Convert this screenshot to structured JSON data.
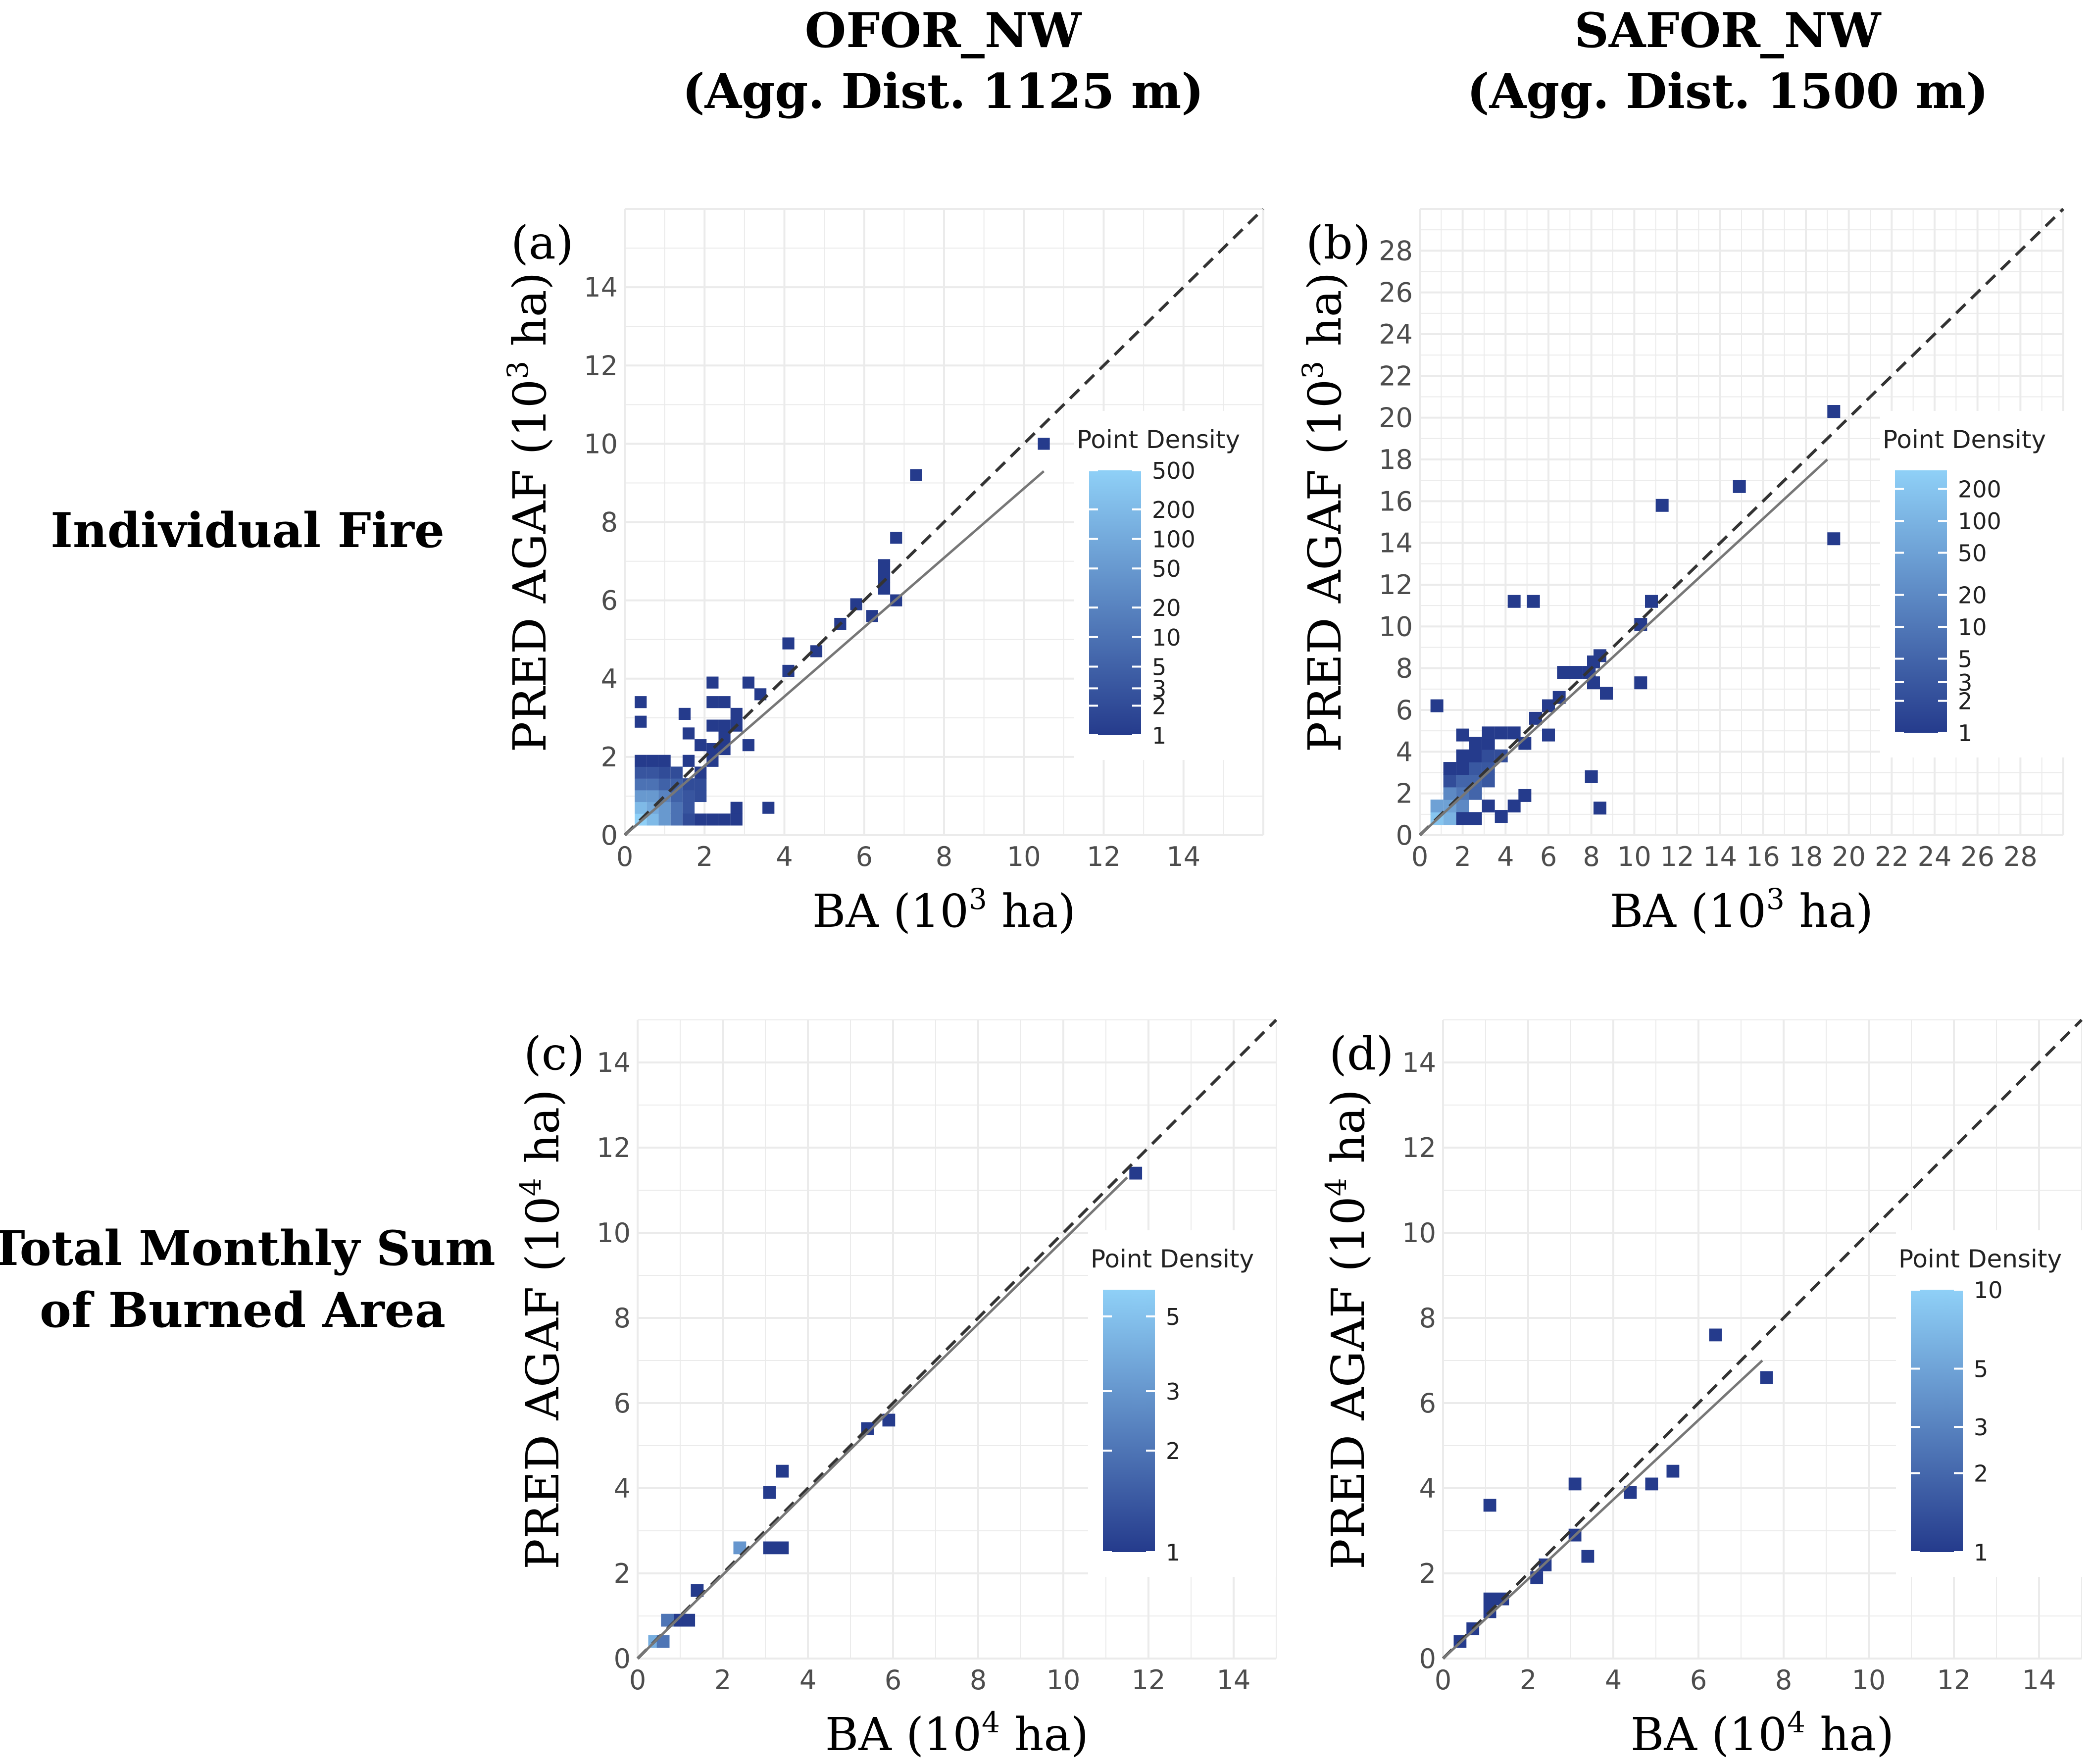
{
  "column_headers": [
    {
      "name": "OFOR_NW",
      "subtitle": "(Agg. Dist. 1125 m)"
    },
    {
      "name": "SAFOR_NW",
      "subtitle": "(Agg. Dist. 1500 m)"
    }
  ],
  "row_labels": [
    {
      "lines": [
        "Individual Fire"
      ]
    },
    {
      "lines": [
        "Total Monthly Sum",
        "of Burned Area"
      ]
    }
  ],
  "colors": {
    "low": "#253b8c",
    "high": "#8fd0f7",
    "grid": "#ebebeb",
    "axis_text": "#4d4d4d",
    "one_to_one": "#333333",
    "fit": "#777777"
  },
  "chart_data": [
    {
      "type": "heatmap",
      "panel_label": "(a)",
      "xlabel": {
        "pre": "BA (10",
        "sup": "3",
        "post": " ha)"
      },
      "ylabel": {
        "pre": "PRED AGAF (10",
        "sup": "3",
        "post": " ha)"
      },
      "xlim": [
        0,
        16
      ],
      "ylim": [
        0,
        16
      ],
      "xticks": [
        "0",
        "2",
        "4",
        "6",
        "8",
        "10",
        "12",
        "14"
      ],
      "yticks": [
        "0",
        "2",
        "4",
        "6",
        "8",
        "10",
        "12",
        "14"
      ],
      "fit_line": {
        "x0": 0,
        "y0": 0,
        "x1": 10.5,
        "y1": 9.3
      },
      "legend": {
        "title": "Point Density",
        "ticks": [
          "1",
          "2",
          "3",
          "5",
          "10",
          "20",
          "50",
          "100",
          "200",
          "500"
        ],
        "max": 500
      },
      "bin": 0.3,
      "points": [
        [
          0.4,
          0.4,
          500
        ],
        [
          0.7,
          0.4,
          200
        ],
        [
          0.4,
          0.7,
          200
        ],
        [
          0.7,
          0.7,
          100
        ],
        [
          1.0,
          0.4,
          50
        ],
        [
          0.4,
          1.0,
          50
        ],
        [
          1.0,
          0.7,
          50
        ],
        [
          0.7,
          1.0,
          50
        ],
        [
          1.0,
          1.0,
          20
        ],
        [
          1.3,
          0.4,
          10
        ],
        [
          1.3,
          0.7,
          10
        ],
        [
          0.4,
          1.3,
          10
        ],
        [
          0.7,
          1.3,
          10
        ],
        [
          1.3,
          1.0,
          5
        ],
        [
          1.0,
          1.3,
          5
        ],
        [
          1.3,
          1.3,
          5
        ],
        [
          1.6,
          0.7,
          3
        ],
        [
          1.6,
          1.0,
          3
        ],
        [
          1.6,
          1.3,
          2
        ],
        [
          0.4,
          1.6,
          3
        ],
        [
          0.7,
          1.6,
          3
        ],
        [
          1.0,
          1.6,
          2
        ],
        [
          1.3,
          1.6,
          2
        ],
        [
          1.9,
          1.0,
          2
        ],
        [
          1.9,
          1.3,
          2
        ],
        [
          1.9,
          0.4,
          1
        ],
        [
          2.2,
          0.4,
          1
        ],
        [
          2.5,
          0.4,
          1
        ],
        [
          1.6,
          0.4,
          2
        ],
        [
          1.9,
          1.6,
          1
        ],
        [
          1.6,
          1.9,
          1
        ],
        [
          0.4,
          1.9,
          1
        ],
        [
          0.7,
          1.9,
          1
        ],
        [
          1.0,
          1.9,
          1
        ],
        [
          2.2,
          1.9,
          1
        ],
        [
          2.2,
          2.2,
          1
        ],
        [
          2.5,
          2.2,
          1
        ],
        [
          2.5,
          2.5,
          1
        ],
        [
          2.2,
          2.8,
          1
        ],
        [
          2.5,
          2.8,
          1
        ],
        [
          2.8,
          2.8,
          1
        ],
        [
          2.2,
          3.4,
          1
        ],
        [
          2.5,
          3.4,
          1
        ],
        [
          2.2,
          3.9,
          1
        ],
        [
          2.8,
          3.1,
          1
        ],
        [
          2.8,
          0.4,
          1
        ],
        [
          2.8,
          0.7,
          1
        ],
        [
          3.6,
          0.7,
          1
        ],
        [
          3.1,
          2.3,
          1
        ],
        [
          3.1,
          3.9,
          1
        ],
        [
          3.4,
          3.6,
          1
        ],
        [
          1.5,
          3.1,
          1
        ],
        [
          1.6,
          2.6,
          1
        ],
        [
          1.9,
          2.3,
          1
        ],
        [
          0.4,
          3.4,
          1
        ],
        [
          0.4,
          2.9,
          1
        ],
        [
          4.1,
          4.9,
          1
        ],
        [
          4.1,
          4.2,
          1
        ],
        [
          4.8,
          4.7,
          1
        ],
        [
          5.4,
          5.4,
          1
        ],
        [
          5.8,
          5.9,
          1
        ],
        [
          6.2,
          5.6,
          1
        ],
        [
          6.5,
          6.3,
          1
        ],
        [
          6.5,
          6.6,
          1
        ],
        [
          6.5,
          6.9,
          1
        ],
        [
          6.8,
          6.0,
          1
        ],
        [
          6.8,
          7.6,
          1
        ],
        [
          7.3,
          9.2,
          1
        ],
        [
          10.5,
          10.0,
          1
        ]
      ]
    },
    {
      "type": "heatmap",
      "panel_label": "(b)",
      "xlabel": {
        "pre": "BA (10",
        "sup": "3",
        "post": " ha)"
      },
      "ylabel": {
        "pre": "PRED AGAF (10",
        "sup": "3",
        "post": " ha)"
      },
      "xlim": [
        0,
        30
      ],
      "ylim": [
        0,
        30
      ],
      "xticks": [
        "0",
        "2",
        "4",
        "6",
        "8",
        "10",
        "12",
        "14",
        "16",
        "18",
        "20",
        "22",
        "24",
        "26",
        "28"
      ],
      "yticks": [
        "0",
        "2",
        "4",
        "6",
        "8",
        "10",
        "12",
        "14",
        "16",
        "18",
        "20",
        "22",
        "24",
        "26",
        "28"
      ],
      "fit_line": {
        "x0": 0,
        "y0": 0,
        "x1": 19.0,
        "y1": 18.0
      },
      "legend": {
        "title": "Point Density",
        "ticks": [
          "1",
          "2",
          "3",
          "5",
          "10",
          "20",
          "50",
          "100",
          "200"
        ],
        "max": 300
      },
      "bin": 0.6,
      "points": [
        [
          0.8,
          0.8,
          200
        ],
        [
          1.4,
          0.8,
          100
        ],
        [
          0.8,
          1.4,
          50
        ],
        [
          1.4,
          1.4,
          50
        ],
        [
          2.0,
          1.4,
          20
        ],
        [
          1.4,
          2.0,
          20
        ],
        [
          2.0,
          2.0,
          10
        ],
        [
          2.6,
          2.0,
          5
        ],
        [
          2.0,
          2.6,
          5
        ],
        [
          2.6,
          2.6,
          5
        ],
        [
          3.2,
          2.6,
          3
        ],
        [
          2.6,
          3.2,
          3
        ],
        [
          3.2,
          3.2,
          3
        ],
        [
          3.2,
          3.8,
          2
        ],
        [
          3.8,
          3.8,
          2
        ],
        [
          1.4,
          2.6,
          2
        ],
        [
          1.4,
          3.2,
          1
        ],
        [
          2.0,
          3.2,
          1
        ],
        [
          2.0,
          3.8,
          1
        ],
        [
          2.6,
          3.8,
          1
        ],
        [
          2.6,
          4.4,
          1
        ],
        [
          3.2,
          4.4,
          1
        ],
        [
          2.0,
          4.8,
          1
        ],
        [
          3.2,
          4.9,
          1
        ],
        [
          3.8,
          4.9,
          1
        ],
        [
          4.4,
          4.9,
          1
        ],
        [
          2.6,
          0.8,
          1
        ],
        [
          2.0,
          0.8,
          1
        ],
        [
          3.2,
          1.4,
          1
        ],
        [
          3.8,
          0.9,
          1
        ],
        [
          4.4,
          1.4,
          1
        ],
        [
          4.9,
          1.9,
          1
        ],
        [
          4.9,
          4.4,
          1
        ],
        [
          5.4,
          5.6,
          1
        ],
        [
          6.0,
          6.2,
          1
        ],
        [
          6.0,
          4.8,
          1
        ],
        [
          6.5,
          6.6,
          1
        ],
        [
          6.7,
          7.8,
          1
        ],
        [
          7.3,
          7.8,
          1
        ],
        [
          7.9,
          7.8,
          1
        ],
        [
          8.1,
          8.3,
          1
        ],
        [
          8.4,
          8.6,
          1
        ],
        [
          8.1,
          7.3,
          1
        ],
        [
          8.7,
          6.8,
          1
        ],
        [
          8.0,
          2.8,
          1
        ],
        [
          8.4,
          1.3,
          1
        ],
        [
          0.8,
          6.2,
          1
        ],
        [
          4.4,
          11.2,
          1
        ],
        [
          5.3,
          11.2,
          1
        ],
        [
          10.8,
          11.2,
          1
        ],
        [
          10.3,
          10.1,
          1
        ],
        [
          10.3,
          7.3,
          1
        ],
        [
          11.3,
          15.8,
          1
        ],
        [
          14.9,
          16.7,
          1
        ],
        [
          19.3,
          20.3,
          1
        ],
        [
          19.3,
          14.2,
          1
        ]
      ]
    },
    {
      "type": "heatmap",
      "panel_label": "(c)",
      "xlabel": {
        "pre": "BA (10",
        "sup": "4",
        "post": " ha)"
      },
      "ylabel": {
        "pre": "PRED AGAF (10",
        "sup": "4",
        "post": " ha)"
      },
      "xlim": [
        0,
        15
      ],
      "ylim": [
        0,
        15
      ],
      "xticks": [
        "0",
        "2",
        "4",
        "6",
        "8",
        "10",
        "12",
        "14"
      ],
      "yticks": [
        "0",
        "2",
        "4",
        "6",
        "8",
        "10",
        "12",
        "14"
      ],
      "fit_line": {
        "x0": 0,
        "y0": 0,
        "x1": 11.5,
        "y1": 11.3
      },
      "legend": {
        "title": "Point Density",
        "ticks": [
          "1",
          "2",
          "3",
          "5"
        ],
        "max": 6
      },
      "bin": 0.3,
      "points": [
        [
          0.4,
          0.4,
          4
        ],
        [
          0.6,
          0.4,
          2
        ],
        [
          0.7,
          0.9,
          2
        ],
        [
          1.0,
          0.9,
          1
        ],
        [
          1.2,
          0.9,
          1
        ],
        [
          1.4,
          1.6,
          1
        ],
        [
          2.4,
          2.6,
          3
        ],
        [
          3.1,
          2.6,
          1
        ],
        [
          3.4,
          2.6,
          1
        ],
        [
          3.1,
          3.9,
          1
        ],
        [
          3.4,
          4.4,
          1
        ],
        [
          5.4,
          5.4,
          1
        ],
        [
          5.9,
          5.6,
          1
        ],
        [
          11.7,
          11.4,
          1
        ]
      ]
    },
    {
      "type": "heatmap",
      "panel_label": "(d)",
      "xlabel": {
        "pre": "BA (10",
        "sup": "4",
        "post": " ha)"
      },
      "ylabel": {
        "pre": "PRED AGAF (10",
        "sup": "4",
        "post": " ha)"
      },
      "xlim": [
        0,
        15
      ],
      "ylim": [
        0,
        15
      ],
      "xticks": [
        "0",
        "2",
        "4",
        "6",
        "8",
        "10",
        "12",
        "14"
      ],
      "yticks": [
        "0",
        "2",
        "4",
        "6",
        "8",
        "10",
        "12",
        "14"
      ],
      "fit_line": {
        "x0": 0,
        "y0": 0,
        "x1": 7.5,
        "y1": 7.0
      },
      "legend": {
        "title": "Point Density",
        "ticks": [
          "1",
          "2",
          "3",
          "5",
          "10"
        ],
        "max": 10
      },
      "bin": 0.3,
      "points": [
        [
          0.4,
          0.4,
          1
        ],
        [
          0.7,
          0.7,
          1
        ],
        [
          1.1,
          1.1,
          1
        ],
        [
          1.1,
          1.4,
          1
        ],
        [
          1.4,
          1.4,
          1
        ],
        [
          1.1,
          3.6,
          1
        ],
        [
          2.2,
          1.9,
          1
        ],
        [
          2.4,
          2.2,
          1
        ],
        [
          3.1,
          2.9,
          1
        ],
        [
          3.1,
          4.1,
          1
        ],
        [
          3.4,
          2.4,
          1
        ],
        [
          4.4,
          3.9,
          1
        ],
        [
          4.9,
          4.1,
          1
        ],
        [
          5.4,
          4.4,
          1
        ],
        [
          6.4,
          7.6,
          1
        ],
        [
          7.6,
          6.6,
          1
        ]
      ]
    }
  ]
}
